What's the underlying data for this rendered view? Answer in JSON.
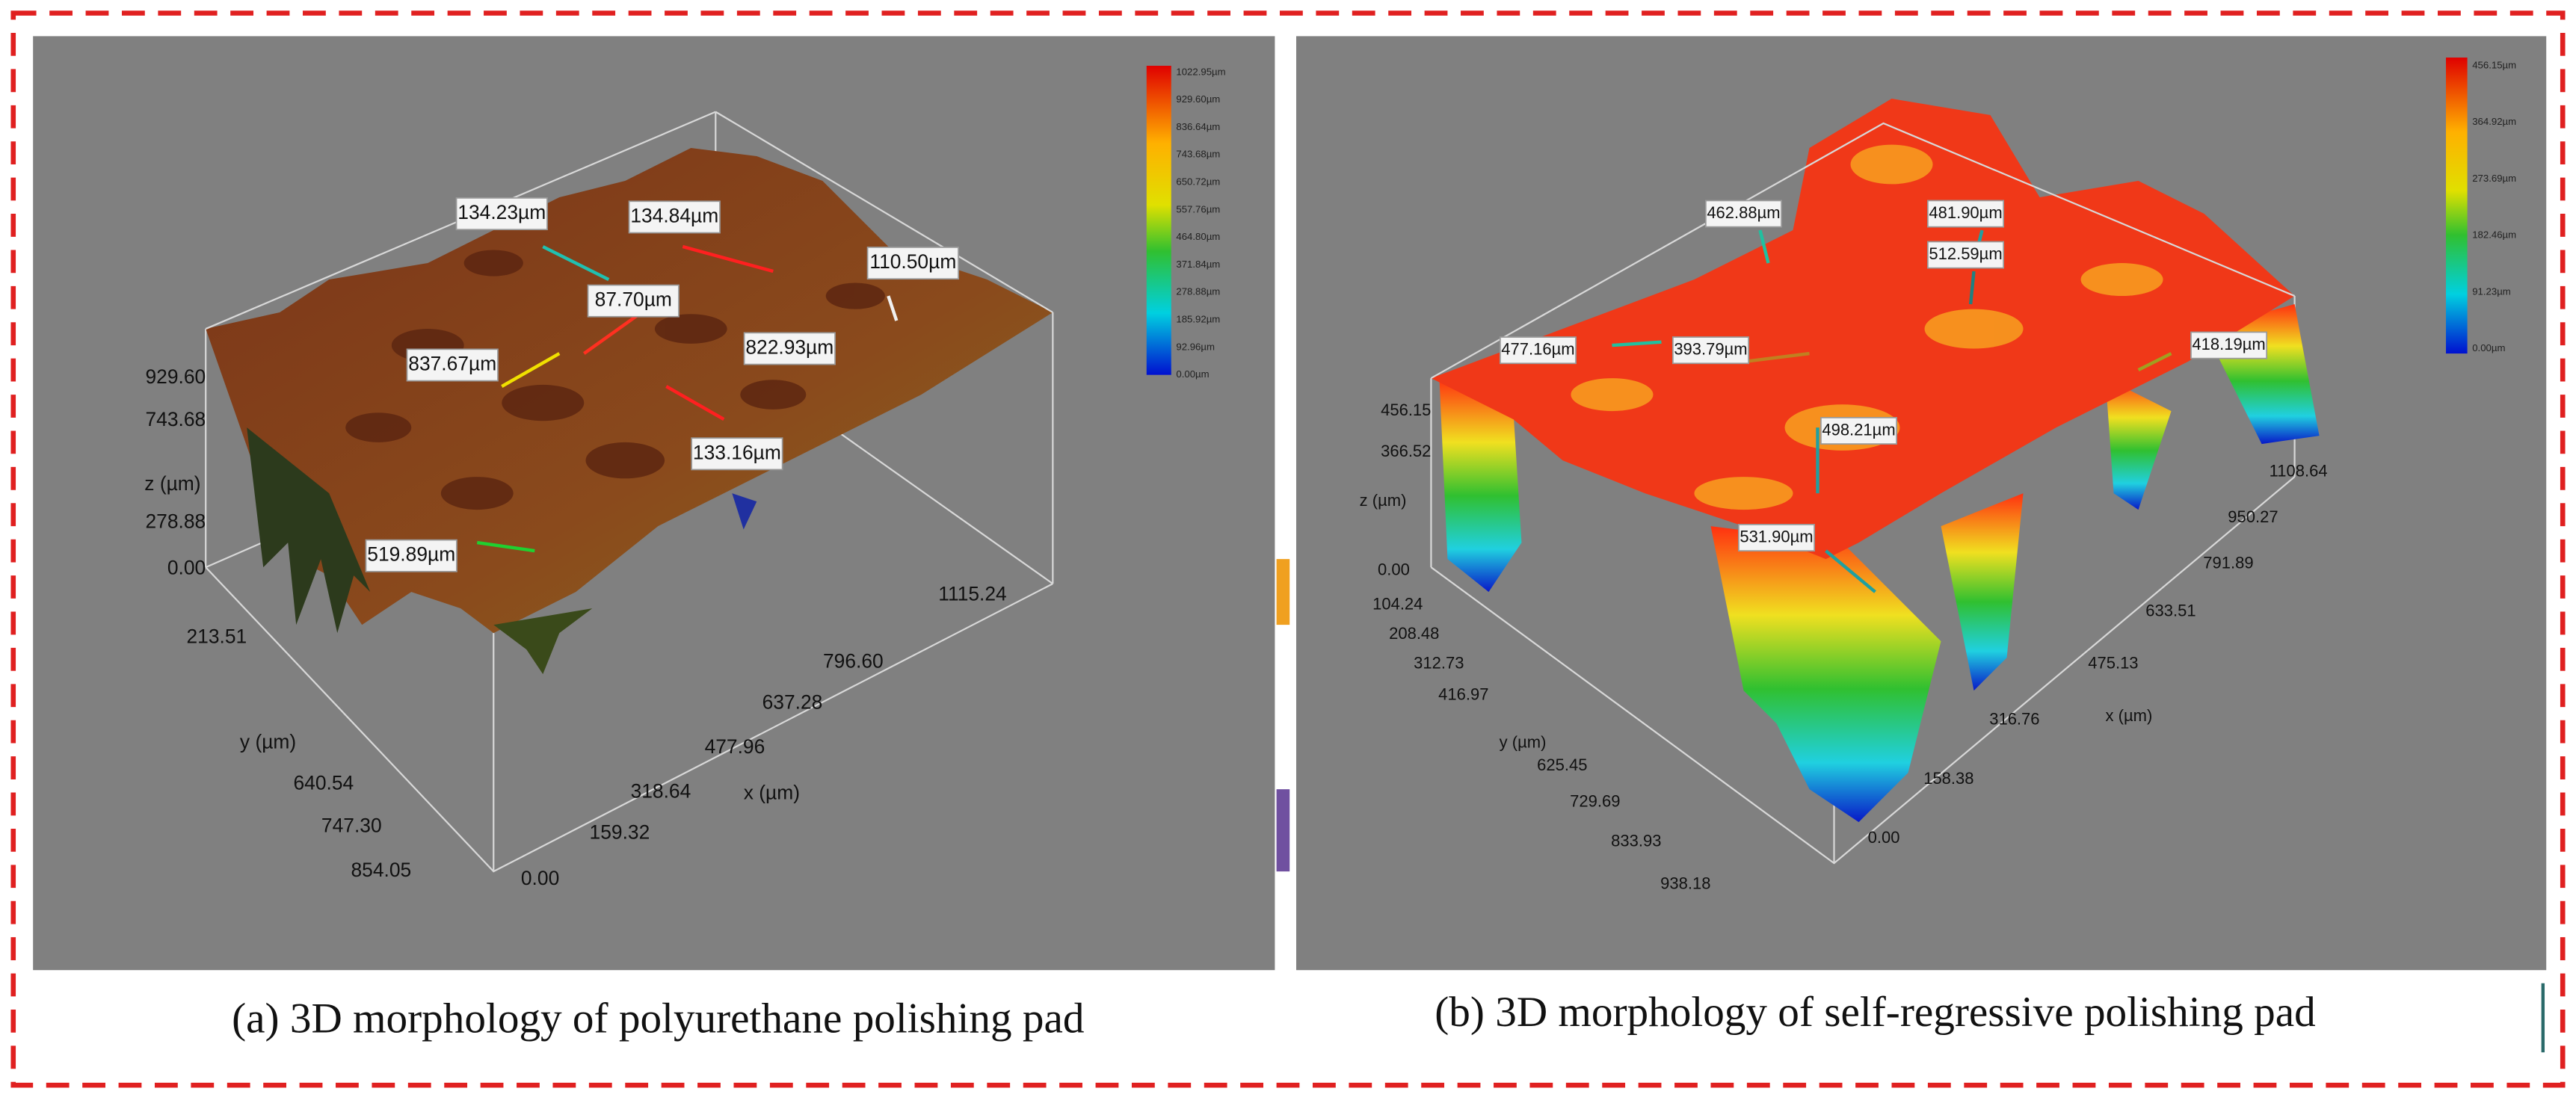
{
  "panels": [
    {
      "caption": "(a)  3D morphology of polyurethane polishing pad",
      "colorbar": [
        "1022.95µm",
        "929.60µm",
        "836.64µm",
        "743.68µm",
        "650.72µm",
        "557.76µm",
        "464.80µm",
        "371.84µm",
        "278.88µm",
        "185.92µm",
        "92.96µm",
        "0.00µm"
      ],
      "z_ticks": [
        "929.60",
        "743.68",
        "278.88",
        "0.00"
      ],
      "z_label": "z (µm)",
      "y_ticks": [
        "213.51",
        "640.54",
        "747.30",
        "854.05"
      ],
      "y_label": "y (µm)",
      "x_ticks": [
        "0.00",
        "159.32",
        "318.64",
        "477.96",
        "637.28",
        "796.60",
        "1115.24"
      ],
      "x_label": "x (µm)",
      "annotations": [
        "134.23µm",
        "134.84µm",
        "110.50µm",
        "87.70µm",
        "837.67µm",
        "822.93µm",
        "133.16µm",
        "519.89µm"
      ]
    },
    {
      "caption": "(b)    3D morphology of self-regressive polishing pad",
      "colorbar": [
        "456.15µm",
        "364.92µm",
        "273.69µm",
        "182.46µm",
        "91.23µm",
        "0.00µm"
      ],
      "z_ticks": [
        "456.15",
        "366.52",
        "0.00"
      ],
      "z_label": "z (µm)",
      "y_ticks": [
        "104.24",
        "208.48",
        "312.73",
        "416.97",
        "625.45",
        "729.69",
        "833.93",
        "938.18"
      ],
      "y_label": "y (µm)",
      "x_ticks": [
        "0.00",
        "158.38",
        "316.76",
        "475.13",
        "633.51",
        "791.89",
        "950.27",
        "1108.64"
      ],
      "x_label": "x (µm)",
      "annotations": [
        "462.88µm",
        "481.90µm",
        "512.59µm",
        "477.16µm",
        "393.79µm",
        "418.19µm",
        "498.21µm",
        "531.90µm"
      ]
    }
  ]
}
